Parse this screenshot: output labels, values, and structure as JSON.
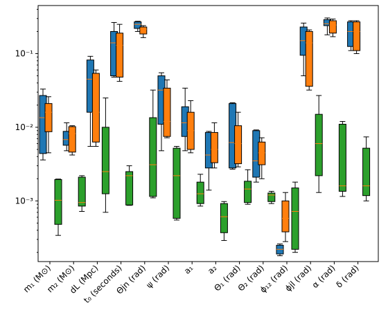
{
  "chart_data": {
    "type": "box",
    "yscale": "log",
    "ylim": [
      0.00015,
      0.45
    ],
    "yticks": [
      {
        "value": 0.001,
        "label": "10⁻³"
      },
      {
        "value": 0.01,
        "label": "10⁻²"
      },
      {
        "value": 0.1,
        "label": "10⁻¹"
      }
    ],
    "categories": [
      "m₁ (M⊙)",
      "m₂ (M⊙)",
      "dL (Mpc)",
      "t₀ (seconds)",
      "Θjn (rad)",
      "ψ (rad)",
      "a₁",
      "a₂",
      "Θ₁ (rad)",
      "Θ₂ (rad)",
      "ϕ₁₂ (rad)",
      "ϕjl (rad)",
      "α (rad)",
      "δ (rad)"
    ],
    "colors": {
      "series_0": "#1f77b4",
      "series_1": "#ff7f0e",
      "series_2": "#2ca02c",
      "median": "#ff7f0e"
    },
    "series": [
      {
        "boxes": [
          {
            "q1": 0.0044,
            "median": 0.0135,
            "q3": 0.027,
            "whislo": 0.0036,
            "whishi": 0.033
          },
          {
            "q1": 0.0057,
            "median": 0.0068,
            "q3": 0.0088,
            "whislo": 0.0048,
            "whishi": 0.0115
          },
          {
            "q1": 0.016,
            "median": 0.045,
            "q3": 0.082,
            "whislo": 0.0055,
            "whishi": 0.092
          },
          {
            "q1": 0.05,
            "median": 0.14,
            "q3": 0.2,
            "whislo": 0.048,
            "whishi": 0.265
          },
          {
            "q1": 0.22,
            "median": 0.25,
            "q3": 0.27,
            "whislo": 0.2,
            "whishi": 0.275
          },
          {
            "q1": 0.011,
            "median": 0.032,
            "q3": 0.05,
            "whislo": 0.0048,
            "whishi": 0.055
          },
          {
            "q1": 0.0075,
            "median": 0.0115,
            "q3": 0.019,
            "whislo": 0.0048,
            "whishi": 0.034
          },
          {
            "q1": 0.0028,
            "median": 0.0042,
            "q3": 0.0085,
            "whislo": 0.0014,
            "whishi": 0.0088
          },
          {
            "q1": 0.0028,
            "median": 0.0062,
            "q3": 0.021,
            "whislo": 0.0027,
            "whishi": 0.0215
          },
          {
            "q1": 0.0021,
            "median": 0.0035,
            "q3": 0.009,
            "whislo": 0.0018,
            "whishi": 0.0092
          },
          {
            "q1": 0.00019,
            "median": 0.00022,
            "q3": 0.00025,
            "whislo": 0.00018,
            "whishi": 0.00026
          },
          {
            "q1": 0.095,
            "median": 0.15,
            "q3": 0.23,
            "whislo": 0.05,
            "whishi": 0.26
          },
          {
            "q1": 0.24,
            "median": 0.255,
            "q3": 0.29,
            "whislo": 0.18,
            "whishi": 0.305
          },
          {
            "q1": 0.125,
            "median": 0.2,
            "q3": 0.27,
            "whislo": 0.11,
            "whishi": 0.28
          }
        ]
      },
      {
        "boxes": [
          {
            "q1": 0.0087,
            "median": 0.016,
            "q3": 0.021,
            "whislo": 0.0045,
            "whishi": 0.026
          },
          {
            "q1": 0.0046,
            "median": 0.0082,
            "q3": 0.0102,
            "whislo": 0.0042,
            "whishi": 0.0105
          },
          {
            "q1": 0.0063,
            "median": 0.016,
            "q3": 0.054,
            "whislo": 0.0055,
            "whishi": 0.06
          },
          {
            "q1": 0.048,
            "median": 0.13,
            "q3": 0.19,
            "whislo": 0.042,
            "whishi": 0.25
          },
          {
            "q1": 0.185,
            "median": 0.215,
            "q3": 0.23,
            "whislo": 0.165,
            "whishi": 0.24
          },
          {
            "q1": 0.0075,
            "median": 0.012,
            "q3": 0.034,
            "whislo": 0.0072,
            "whishi": 0.044
          },
          {
            "q1": 0.005,
            "median": 0.009,
            "q3": 0.016,
            "whislo": 0.0045,
            "whishi": 0.023
          },
          {
            "q1": 0.0033,
            "median": 0.005,
            "q3": 0.0085,
            "whislo": 0.0028,
            "whishi": 0.0115
          },
          {
            "q1": 0.0032,
            "median": 0.006,
            "q3": 0.0105,
            "whislo": 0.0029,
            "whishi": 0.016
          },
          {
            "q1": 0.0031,
            "median": 0.0045,
            "q3": 0.0063,
            "whislo": 0.002,
            "whishi": 0.0072
          },
          {
            "q1": 0.00038,
            "median": 0.00058,
            "q3": 0.001,
            "whislo": 0.00028,
            "whishi": 0.0013
          },
          {
            "q1": 0.036,
            "median": 0.14,
            "q3": 0.2,
            "whislo": 0.032,
            "whishi": 0.21
          },
          {
            "q1": 0.19,
            "median": 0.245,
            "q3": 0.28,
            "whislo": 0.17,
            "whishi": 0.295
          },
          {
            "q1": 0.11,
            "median": 0.2,
            "q3": 0.27,
            "whislo": 0.1,
            "whishi": 0.28
          }
        ]
      },
      {
        "boxes": [
          {
            "q1": 0.00048,
            "median": 0.00102,
            "q3": 0.00195,
            "whislo": 0.00034,
            "whishi": 0.00198
          },
          {
            "q1": 0.00085,
            "median": 0.00095,
            "q3": 0.0021,
            "whislo": 0.00072,
            "whishi": 0.0022
          },
          {
            "q1": 0.00125,
            "median": 0.0025,
            "q3": 0.01,
            "whislo": 0.0007,
            "whishi": 0.025
          },
          {
            "q1": 0.00088,
            "median": 0.0022,
            "q3": 0.0025,
            "whislo": 0.00087,
            "whishi": 0.003
          },
          {
            "q1": 0.00115,
            "median": 0.0031,
            "q3": 0.0135,
            "whislo": 0.0011,
            "whishi": 0.032
          },
          {
            "q1": 0.00058,
            "median": 0.0022,
            "q3": 0.0052,
            "whislo": 0.00055,
            "whishi": 0.0055
          },
          {
            "q1": 0.00092,
            "median": 0.00125,
            "q3": 0.0018,
            "whislo": 0.00085,
            "whishi": 0.0023
          },
          {
            "q1": 0.00037,
            "median": 0.00061,
            "q3": 0.00092,
            "whislo": 0.00029,
            "whishi": 0.00098
          },
          {
            "q1": 0.00095,
            "median": 0.00145,
            "q3": 0.00185,
            "whislo": 0.0009,
            "whishi": 0.00265
          },
          {
            "q1": 0.00098,
            "median": 0.0012,
            "q3": 0.00128,
            "whislo": 0.00092,
            "whishi": 0.00135
          },
          {
            "q1": 0.00022,
            "median": 0.00072,
            "q3": 0.0015,
            "whislo": 0.0002,
            "whishi": 0.0018
          },
          {
            "q1": 0.0022,
            "median": 0.006,
            "q3": 0.015,
            "whislo": 0.0013,
            "whishi": 0.027
          },
          {
            "q1": 0.00135,
            "median": 0.0016,
            "q3": 0.011,
            "whislo": 0.00115,
            "whishi": 0.012
          },
          {
            "q1": 0.00118,
            "median": 0.0016,
            "q3": 0.0052,
            "whislo": 0.001,
            "whishi": 0.0074
          }
        ]
      }
    ]
  }
}
